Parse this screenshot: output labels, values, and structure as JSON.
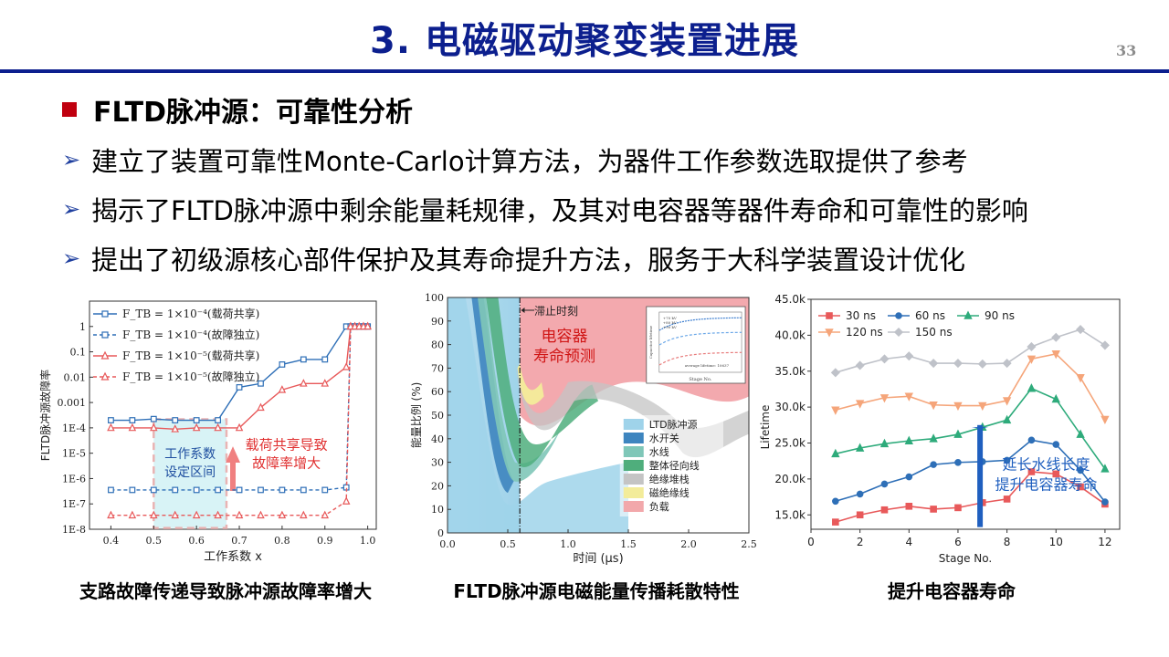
{
  "header": {
    "title": "3. 电磁驱动聚变装置进展",
    "page_number": "33"
  },
  "section": {
    "title": "FLTD脉冲源：可靠性分析"
  },
  "bullets": [
    "建立了装置可靠性Monte-Carlo计算方法，为器件工作参数选取提供了参考",
    "揭示了FLTD脉冲源中剩余能量耗规律，及其对电容器等器件寿命和可靠性的影响",
    "提出了初级源核心部件保护及其寿命提升方法，服务于大科学装置设计优化"
  ],
  "bullet_icon": "arrow-right-icon",
  "captions": [
    "支路故障传递导致脉冲源故障率增大",
    "FLTD脉冲源电磁能量传播耗散特性",
    "提升电容器寿命"
  ],
  "fig1": {
    "ylabel": "FLTD脉冲源故障率",
    "xlabel": "工作系数 x",
    "legend": [
      "F_TB = 1×10⁻⁴(载荷共享)",
      "F_TB = 1×10⁻⁴(故障独立)",
      "F_TB = 1×10⁻⁵(载荷共享)",
      "F_TB = 1×10⁻⁵(故障独立)"
    ],
    "box_label": [
      "工作系数",
      "设定区间"
    ],
    "annotation": [
      "载荷共享导致",
      "故障率增大"
    ],
    "colors": {
      "blue": "#2e6fb7",
      "red": "#e8595a",
      "box": "#e9b3b3",
      "box_fill": "#d8f3f6"
    },
    "chart_data": {
      "type": "line",
      "x": [
        0.4,
        0.45,
        0.5,
        0.55,
        0.6,
        0.65,
        0.7,
        0.75,
        0.8,
        0.85,
        0.9,
        0.95,
        0.96,
        0.97,
        0.98,
        0.99,
        1.0
      ],
      "x_ticks": [
        "0.4",
        "0.5",
        "0.6",
        "0.7",
        "0.8",
        "0.9",
        "1.0"
      ],
      "y_ticks": [
        "1",
        "0.1",
        "0.01",
        "0.001",
        "1E-4",
        "1E-5",
        "1E-6",
        "1E-7",
        "1E-8"
      ],
      "ylim_log10": [
        -8,
        1
      ],
      "series": [
        {
          "name": "F_TB = 1×10⁻⁴(载荷共享)",
          "style": "solid-square-blue",
          "y_log10": [
            -3.7,
            -3.7,
            -3.65,
            -3.7,
            -3.7,
            -3.7,
            -2.4,
            -2.25,
            -1.5,
            -1.3,
            -1.3,
            0,
            0,
            0,
            0,
            0,
            0
          ]
        },
        {
          "name": "F_TB = 1×10⁻⁴(故障独立)",
          "style": "dash-square-blue",
          "y_log10": [
            -6.45,
            -6.45,
            -6.45,
            -6.45,
            -6.45,
            -6.45,
            -6.45,
            -6.45,
            -6.45,
            -6.45,
            -6.45,
            -6.35,
            0,
            0,
            0,
            0,
            0
          ]
        },
        {
          "name": "F_TB = 1×10⁻⁵(载荷共享)",
          "style": "solid-triangle-red",
          "y_log10": [
            -4.0,
            -4.0,
            -4.0,
            -4.05,
            -4.0,
            -4.0,
            -4.0,
            -3.2,
            -2.5,
            -2.25,
            -2.25,
            -1.6,
            0,
            0,
            0,
            0,
            0
          ]
        },
        {
          "name": "F_TB = 1×10⁻⁵(故障独立)",
          "style": "dash-triangle-red",
          "y_log10": [
            -7.45,
            -7.45,
            -7.45,
            -7.45,
            -7.45,
            -7.45,
            -7.45,
            -7.45,
            -7.45,
            -7.45,
            -7.45,
            -6.9,
            0,
            0,
            0,
            0,
            0
          ]
        }
      ]
    }
  },
  "fig2": {
    "ylabel": "能量比例 (%)",
    "xlabel": "时间 (μs)",
    "cutoff_label": "滞止时刻",
    "overlay_label": [
      "电容器",
      "寿命预测"
    ],
    "inset_labels": {
      "legend": [
        "+70 kV",
        "+80 kV",
        "+90 kV"
      ],
      "note": "average lifetime: 10637",
      "ylabel": "Capacitor lifetime",
      "xlabel": "Stage No."
    },
    "legend": [
      "LTD脉冲源",
      "水开关",
      "水线",
      "整体径向线",
      "绝缘堆栈",
      "磁绝缘线",
      "负载"
    ],
    "legend_colors": [
      "#9fd3ea",
      "#3e85bf",
      "#7fc7b8",
      "#4fae7c",
      "#c4c4c4",
      "#f3ec9a",
      "#f2a8ab"
    ],
    "chart_data": {
      "type": "area",
      "x_ticks": [
        "0.0",
        "0.5",
        "1.0",
        "1.5",
        "2.0",
        "2.5"
      ],
      "y_ticks": [
        "0",
        "10",
        "20",
        "30",
        "40",
        "50",
        "60",
        "70",
        "80",
        "90",
        "100"
      ],
      "xlim": [
        0,
        2.5
      ],
      "ylim": [
        0,
        100
      ],
      "cutoff_x": 0.6
    }
  },
  "fig3": {
    "ylabel": "Lifetime",
    "xlabel": "Stage No.",
    "annotation": [
      "延长水线长度",
      "提升电容器寿命"
    ],
    "colors": {
      "30 ns": "#e8595a",
      "60 ns": "#2e6fb7",
      "90 ns": "#2eab7b",
      "120 ns": "#f5a57a",
      "150 ns": "#bfc2c9",
      "arrow": "#1f5fbf"
    },
    "chart_data": {
      "type": "line",
      "x": [
        1,
        2,
        3,
        4,
        5,
        6,
        7,
        8,
        9,
        10,
        11,
        12
      ],
      "x_ticks": [
        "0",
        "2",
        "4",
        "6",
        "8",
        "10",
        "12"
      ],
      "y_ticks": [
        "15.0k",
        "20.0k",
        "25.0k",
        "30.0k",
        "35.0k",
        "40.0k",
        "45.0k"
      ],
      "xlim": [
        0,
        12.6
      ],
      "ylim": [
        13000,
        45000
      ],
      "series": [
        {
          "name": "30 ns",
          "marker": "square",
          "values": [
            14000,
            15000,
            15700,
            16200,
            15800,
            16000,
            16700,
            17200,
            21000,
            20700,
            18900,
            16500
          ]
        },
        {
          "name": "60 ns",
          "marker": "circle",
          "values": [
            16900,
            17900,
            19300,
            20300,
            22000,
            22300,
            22400,
            22600,
            25400,
            24800,
            21200,
            16800
          ]
        },
        {
          "name": "90 ns",
          "marker": "triangle-up",
          "values": [
            23500,
            24300,
            24900,
            25300,
            25600,
            26200,
            27200,
            28200,
            32600,
            31100,
            26200,
            21400
          ]
        },
        {
          "name": "120 ns",
          "marker": "triangle-down",
          "values": [
            29600,
            30500,
            31300,
            31500,
            30300,
            30200,
            30200,
            30900,
            36700,
            37400,
            34100,
            28300
          ]
        },
        {
          "name": "150 ns",
          "marker": "diamond",
          "values": [
            34800,
            35800,
            36700,
            37100,
            36100,
            36100,
            36000,
            36100,
            38400,
            39700,
            40800,
            38600
          ]
        }
      ]
    }
  }
}
